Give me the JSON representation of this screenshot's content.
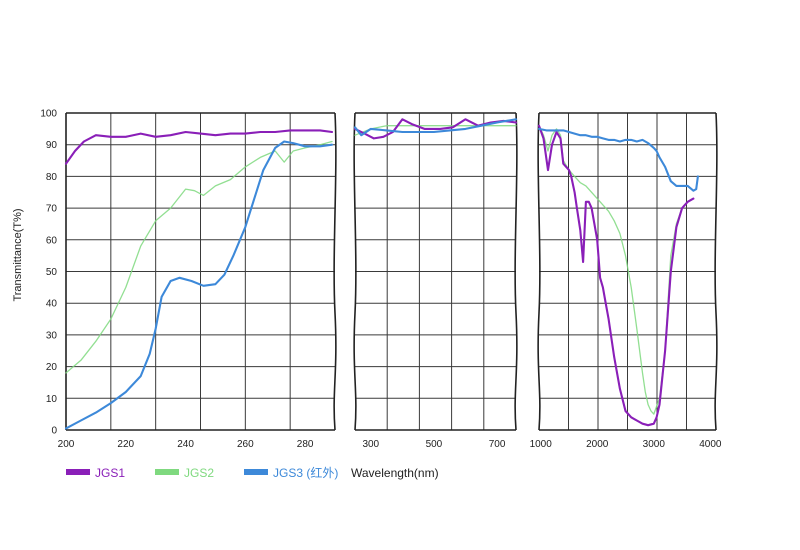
{
  "chart_data": {
    "type": "line",
    "ylabel": "Transmittance(T%)",
    "xlabel": "Wavelength(nm)",
    "ylim": [
      0,
      100
    ],
    "yticks": [
      "0",
      "10",
      "20",
      "30",
      "40",
      "50",
      "60",
      "70",
      "80",
      "90",
      "100"
    ],
    "grid": true,
    "legend_position": "bottom-left",
    "panels": [
      {
        "xlim": [
          200,
          290
        ],
        "xticks": [
          "200",
          "220",
          "240",
          "260",
          "280"
        ],
        "series": [
          {
            "name": "JGS1",
            "color": "#8a1fb8",
            "x": [
              200,
              203,
              206,
              210,
              215,
              220,
              225,
              230,
              235,
              240,
              245,
              250,
              255,
              260,
              265,
              270,
              275,
              280,
              285,
              289
            ],
            "y": [
              84,
              88,
              91,
              93,
              92.5,
              92.5,
              93.5,
              92.5,
              93,
              94,
              93.5,
              93,
              93.5,
              93.5,
              94,
              94,
              94.5,
              94.5,
              94.5,
              94
            ]
          },
          {
            "name": "JGS2",
            "color": "#7fd97f",
            "x": [
              200,
              205,
              210,
              215,
              220,
              225,
              230,
              235,
              240,
              243,
              246,
              250,
              255,
              260,
              265,
              270,
              273,
              276,
              280,
              285,
              289
            ],
            "y": [
              18,
              22,
              28,
              35,
              45,
              58,
              66,
              70,
              76,
              75.5,
              74,
              77,
              79,
              83,
              86,
              88,
              84.5,
              88,
              89,
              90,
              91
            ]
          },
          {
            "name": "JGS3 (红外)",
            "color": "#3d89d9",
            "x": [
              200,
              205,
              210,
              215,
              220,
              225,
              228,
              230,
              232,
              235,
              238,
              242,
              246,
              250,
              253,
              256,
              260,
              263,
              266,
              270,
              273,
              276,
              280,
              285,
              289
            ],
            "y": [
              0.5,
              3,
              5.5,
              8.5,
              12,
              17,
              24,
              32,
              42,
              47,
              48,
              47,
              45.5,
              46,
              49,
              55,
              64,
              73,
              82,
              89,
              91,
              90.5,
              89.5,
              89.5,
              90
            ]
          }
        ]
      },
      {
        "xlim": [
          250,
          760
        ],
        "xticks": [
          "300",
          "500",
          "700"
        ],
        "series": [
          {
            "name": "JGS1",
            "color": "#8a1fb8",
            "x": [
              250,
              280,
              310,
              340,
              370,
              400,
              430,
              470,
              520,
              560,
              600,
              640,
              680,
              720,
              760
            ],
            "y": [
              95,
              93.5,
              92,
              92.5,
              94,
              98,
              96.5,
              95,
              95,
              95.5,
              98,
              96,
              97,
              97.5,
              97
            ]
          },
          {
            "name": "JGS2",
            "color": "#7fd97f",
            "x": [
              250,
              300,
              350,
              400,
              450,
              500,
              550,
              600,
              650,
              700,
              760
            ],
            "y": [
              93,
              95,
              96,
              96,
              96,
              96,
              96,
              96,
              96,
              96,
              96
            ]
          },
          {
            "name": "JGS3 (红外)",
            "color": "#3d89d9",
            "x": [
              250,
              270,
              300,
              350,
              400,
              450,
              500,
              550,
              600,
              650,
              700,
              760
            ],
            "y": [
              95.5,
              93,
              95,
              94.5,
              94,
              94,
              94,
              94.5,
              95,
              96,
              97,
              98
            ]
          }
        ]
      },
      {
        "xlim": [
          970,
          4100
        ],
        "xticks": [
          "1000",
          "2000",
          "3000",
          "4000"
        ],
        "series": [
          {
            "name": "JGS1",
            "color": "#8a1fb8",
            "x": [
              970,
              1050,
              1130,
              1200,
              1280,
              1350,
              1400,
              1500,
              1540,
              1600,
              1640,
              1700,
              1750,
              1800,
              1850,
              1900,
              1950,
              2000,
              2050,
              2100,
              2150,
              2200,
              2300,
              2400,
              2500,
              2600,
              2700,
              2800,
              2900,
              3000,
              3050,
              3100,
              3200,
              3300,
              3400,
              3500,
              3600,
              3700
            ],
            "y": [
              96,
              92,
              82,
              90,
              94,
              92,
              84,
              82,
              80,
              75,
              70,
              63,
              53,
              72,
              72,
              70,
              65,
              60,
              48,
              45,
              40,
              35,
              23,
              13,
              6,
              4,
              3,
              2,
              1.5,
              2,
              4,
              8,
              25,
              50,
              64,
              70,
              72,
              73
            ]
          },
          {
            "name": "JGS2",
            "color": "#7fd97f",
            "x": [
              970,
              1050,
              1130,
              1200,
              1280,
              1350,
              1400,
              1500,
              1600,
              1700,
              1800,
              1900,
              2000,
              2100,
              2200,
              2300,
              2400,
              2500,
              2600,
              2700,
              2800,
              2850,
              2900,
              2950,
              3000,
              3100,
              3200,
              3300,
              3400,
              3500,
              3600,
              3700
            ],
            "y": [
              96,
              93,
              88,
              93,
              95,
              93,
              85,
              82,
              80,
              78,
              77,
              75,
              73,
              71,
              69,
              66,
              62,
              55,
              45,
              32,
              18,
              12,
              8,
              6,
              5,
              10,
              25,
              55,
              65,
              70,
              72,
              73
            ]
          },
          {
            "name": "JGS3 (红外)",
            "color": "#3d89d9",
            "x": [
              970,
              1100,
              1200,
              1300,
              1400,
              1500,
              1600,
              1700,
              1800,
              1900,
              2000,
              2100,
              2200,
              2300,
              2400,
              2500,
              2600,
              2700,
              2800,
              2900,
              3000,
              3050,
              3100,
              3200,
              3300,
              3400,
              3500,
              3600,
              3700,
              3750,
              3780
            ],
            "y": [
              95,
              94.5,
              94.5,
              94.5,
              94.5,
              94,
              93.5,
              93,
              93,
              92.5,
              92.5,
              92,
              91.5,
              91.5,
              91,
              91.5,
              91.5,
              91,
              91.5,
              90.5,
              89,
              88,
              86,
              83,
              78.5,
              77,
              77,
              77,
              75.5,
              76,
              80
            ]
          }
        ]
      }
    ]
  },
  "legend": [
    {
      "label": "JGS1",
      "color": "#8a1fb8"
    },
    {
      "label": "JGS2",
      "color": "#7fd97f"
    },
    {
      "label": "JGS3 (红外)",
      "color": "#3d89d9"
    }
  ],
  "wavelength_label": "Wavelength(nm)"
}
